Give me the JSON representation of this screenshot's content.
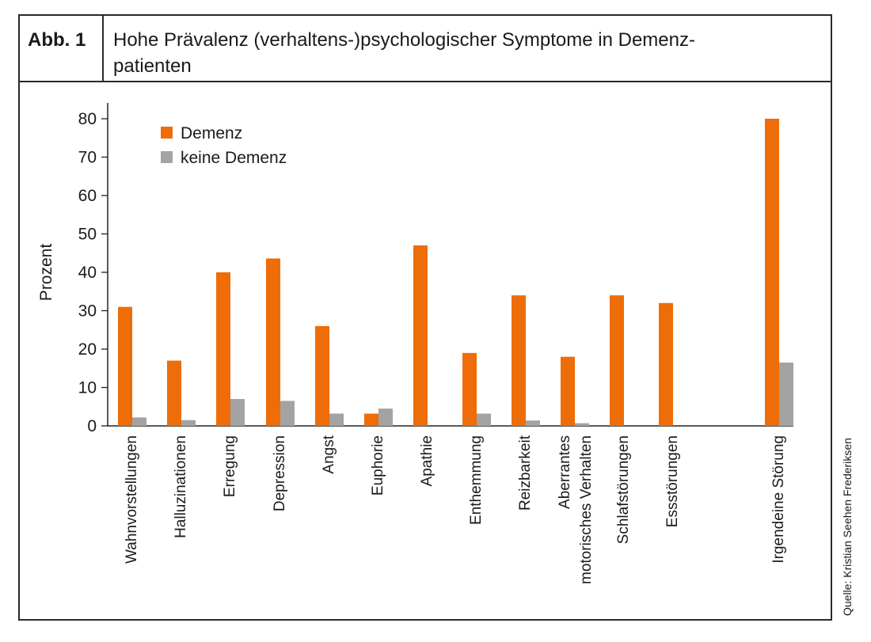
{
  "figure": {
    "label": "Abb. 1",
    "title_line1": "Hohe Prävalenz (verhaltens-)psychologischer Symptome in Demenz-",
    "title_line2": "patienten"
  },
  "source": "Quelle: Kristian Seehen Frederiksen",
  "colors": {
    "demenz": "#ee6d08",
    "keine_demenz": "#a3a3a3",
    "axis": "#222222"
  },
  "chart_data": {
    "type": "bar",
    "title": "",
    "xlabel": "",
    "ylabel": "Prozent",
    "ylim": [
      0,
      80
    ],
    "yticks": [
      0,
      10,
      20,
      30,
      40,
      50,
      60,
      70,
      80
    ],
    "legend_position": "top-left",
    "grid": false,
    "categories": [
      [
        "Wahnvorstellungen"
      ],
      [
        "Halluzinationen"
      ],
      [
        "Erregung"
      ],
      [
        "Depression"
      ],
      [
        "Angst"
      ],
      [
        "Euphorie"
      ],
      [
        "Apathie"
      ],
      [
        "Enthemmung"
      ],
      [
        "Reizbarkeit"
      ],
      [
        "Aberrantes",
        "motorisches Verhalten"
      ],
      [
        "Schlafstörungen"
      ],
      [
        "Essstörungen"
      ],
      [
        "Irgendeine Störung"
      ]
    ],
    "series": [
      {
        "name": "Demenz",
        "values": [
          31,
          17,
          40,
          43.6,
          26,
          3.2,
          47,
          19,
          34,
          18,
          34,
          32,
          80
        ]
      },
      {
        "name": "keine Demenz",
        "values": [
          2.2,
          1.5,
          7,
          6.5,
          3.2,
          4.5,
          null,
          3.2,
          1.4,
          0.7,
          null,
          null,
          16.5
        ]
      }
    ]
  }
}
